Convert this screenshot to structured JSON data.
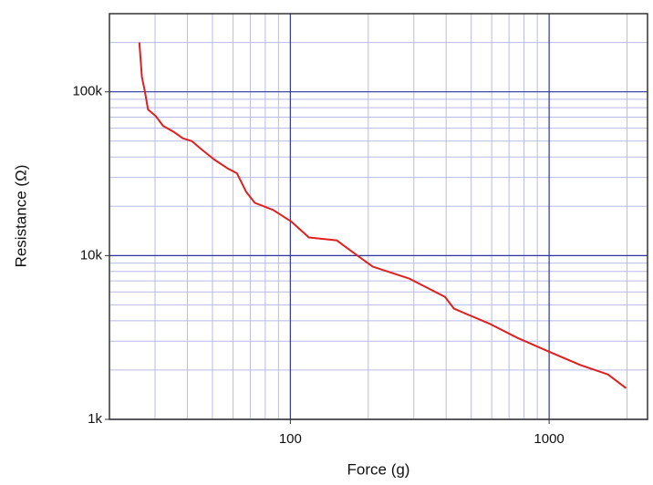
{
  "chart_data": {
    "type": "line",
    "xlabel": "Force (g)",
    "ylabel": "Resistance (Ω)",
    "xscale": "log",
    "yscale": "log",
    "grid": true,
    "xlim": [
      20,
      2400
    ],
    "ylim": [
      1000,
      300000
    ],
    "xticks": [
      100,
      1000
    ],
    "yticks": [
      {
        "value": 1000,
        "label": "1k"
      },
      {
        "value": 10000,
        "label": "10k"
      },
      {
        "value": 100000,
        "label": "100k"
      }
    ],
    "xminor_ticks": [
      20,
      30,
      40,
      50,
      60,
      70,
      80,
      90,
      200,
      300,
      400,
      500,
      600,
      700,
      800,
      900,
      2000
    ],
    "yminor_ticks": [
      2000,
      3000,
      4000,
      5000,
      6000,
      7000,
      8000,
      9000,
      20000,
      30000,
      40000,
      50000,
      60000,
      70000,
      80000,
      90000,
      200000,
      300000
    ],
    "grid_color": "#2e35a0",
    "minor_grid_color": "#b7bbe6",
    "series": [
      {
        "color": "#e02020",
        "x": [
          26.1,
          26.7,
          27.4,
          28.2,
          30.2,
          32.2,
          35.4,
          38.4,
          41.6,
          45,
          50.8,
          57.4,
          62.2,
          67.4,
          72.9,
          85.8,
          101,
          118,
          151,
          177,
          208,
          287,
          396,
          429,
          594,
          755,
          1000,
          1325,
          1686,
          1983
        ],
        "values": [
          200000,
          123000,
          101000,
          78000,
          71000,
          62000,
          57000,
          52000,
          50000,
          45000,
          38600,
          34000,
          31800,
          24600,
          21000,
          19000,
          16100,
          12900,
          12400,
          10300,
          8570,
          7250,
          5600,
          4740,
          3810,
          3140,
          2590,
          2140,
          1880,
          1550
        ]
      }
    ]
  }
}
